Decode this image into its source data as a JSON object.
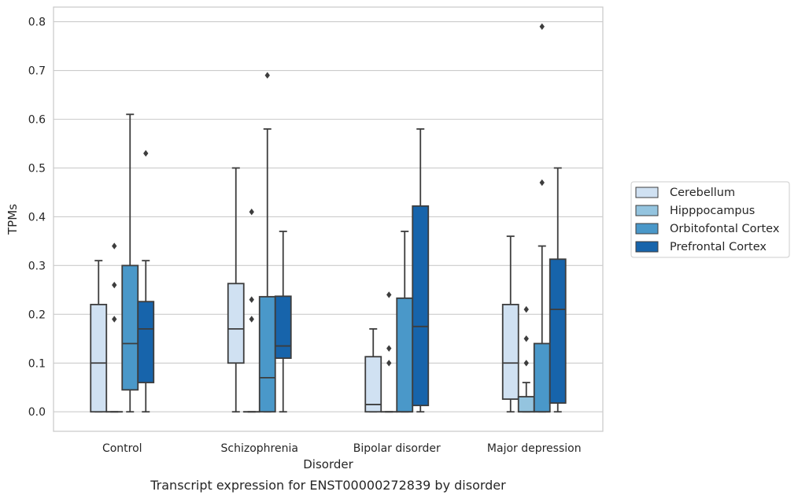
{
  "chart_data": {
    "type": "box",
    "caption": "Transcript expression for ENST00000272839 by disorder",
    "xlabel": "Disorder",
    "ylabel": "TPMs",
    "ylim": [
      -0.04,
      0.83
    ],
    "yticks": [
      "0.0",
      "0.1",
      "0.2",
      "0.3",
      "0.4",
      "0.5",
      "0.6",
      "0.7",
      "0.8"
    ],
    "grid": "horizontal",
    "legend_position": "right",
    "categories": [
      "Control",
      "Schizophrenia",
      "Bipolar disorder",
      "Major depression"
    ],
    "series": [
      {
        "name": "Cerebellum",
        "color": "#d0e1f2",
        "boxes": [
          {
            "whislo": 0.0,
            "q1": 0.0,
            "med": 0.1,
            "q3": 0.22,
            "whishi": 0.31,
            "fliers": []
          },
          {
            "whislo": 0.0,
            "q1": 0.1,
            "med": 0.17,
            "q3": 0.263,
            "whishi": 0.5,
            "fliers": []
          },
          {
            "whislo": 0.0,
            "q1": 0.0,
            "med": 0.015,
            "q3": 0.113,
            "whishi": 0.17,
            "fliers": []
          },
          {
            "whislo": 0.0,
            "q1": 0.026,
            "med": 0.1,
            "q3": 0.22,
            "whishi": 0.36,
            "fliers": []
          }
        ]
      },
      {
        "name": "Hipppocampus",
        "color": "#94c4df",
        "boxes": [
          {
            "whislo": 0.0,
            "q1": 0.0,
            "med": 0.0,
            "q3": 0.0,
            "whishi": 0.0,
            "fliers": [
              0.19,
              0.26,
              0.34
            ]
          },
          {
            "whislo": 0.0,
            "q1": 0.0,
            "med": 0.0,
            "q3": 0.0,
            "whishi": 0.0,
            "fliers": [
              0.19,
              0.23,
              0.41
            ]
          },
          {
            "whislo": 0.0,
            "q1": 0.0,
            "med": 0.0,
            "q3": 0.0,
            "whishi": 0.0,
            "fliers": [
              0.1,
              0.13,
              0.24
            ]
          },
          {
            "whislo": 0.0,
            "q1": 0.0,
            "med": 0.0,
            "q3": 0.031,
            "whishi": 0.06,
            "fliers": [
              0.1,
              0.15,
              0.21
            ]
          }
        ]
      },
      {
        "name": "Orbitofontal Cortex",
        "color": "#4a98c9",
        "boxes": [
          {
            "whislo": 0.0,
            "q1": 0.045,
            "med": 0.14,
            "q3": 0.3,
            "whishi": 0.61,
            "fliers": []
          },
          {
            "whislo": 0.0,
            "q1": 0.0,
            "med": 0.07,
            "q3": 0.236,
            "whishi": 0.58,
            "fliers": [
              0.69
            ]
          },
          {
            "whislo": 0.0,
            "q1": 0.0,
            "med": 0.0,
            "q3": 0.233,
            "whishi": 0.37,
            "fliers": []
          },
          {
            "whislo": 0.0,
            "q1": 0.0,
            "med": 0.0,
            "q3": 0.14,
            "whishi": 0.34,
            "fliers": [
              0.47,
              0.79
            ]
          }
        ]
      },
      {
        "name": "Prefrontal Cortex",
        "color": "#1764ab",
        "boxes": [
          {
            "whislo": 0.0,
            "q1": 0.06,
            "med": 0.17,
            "q3": 0.226,
            "whishi": 0.31,
            "fliers": [
              0.53
            ]
          },
          {
            "whislo": 0.0,
            "q1": 0.11,
            "med": 0.135,
            "q3": 0.237,
            "whishi": 0.37,
            "fliers": []
          },
          {
            "whislo": 0.0,
            "q1": 0.013,
            "med": 0.175,
            "q3": 0.422,
            "whishi": 0.58,
            "fliers": []
          },
          {
            "whislo": 0.0,
            "q1": 0.018,
            "med": 0.21,
            "q3": 0.313,
            "whishi": 0.5,
            "fliers": []
          }
        ]
      }
    ]
  }
}
